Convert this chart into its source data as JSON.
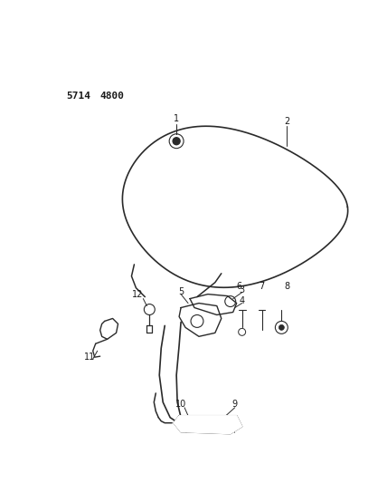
{
  "title_1": "5714",
  "title_2": "4800",
  "background_color": "#ffffff",
  "line_color": "#2a2a2a",
  "text_color": "#1a1a1a",
  "label_fontsize": 7,
  "title_fontsize": 8
}
